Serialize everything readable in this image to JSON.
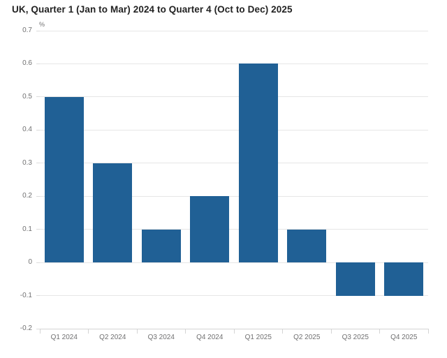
{
  "title": "UK, Quarter 1 (Jan to Mar) 2024 to Quarter 4 (Oct to Dec) 2025",
  "chart_data": {
    "type": "bar",
    "title": "UK, Quarter 1 (Jan to Mar) 2024 to Quarter 4 (Oct to Dec) 2025",
    "unit_label": "%",
    "categories": [
      "Q1 2024",
      "Q2 2024",
      "Q3 2024",
      "Q4 2024",
      "Q1 2025",
      "Q2 2025",
      "Q3 2025",
      "Q4 2025"
    ],
    "values": [
      0.5,
      0.3,
      0.1,
      0.2,
      0.6,
      0.1,
      -0.1,
      -0.1
    ],
    "xlabel": "",
    "ylabel": "%",
    "ylim": [
      -0.2,
      0.7
    ],
    "yticks": [
      0.7,
      0.6,
      0.5,
      0.4,
      0.3,
      0.2,
      0.1,
      0,
      -0.1,
      -0.2
    ],
    "grid": true,
    "legend": "none",
    "bar_color": "#206095",
    "gridline_color": "#e6e6e6",
    "axis_color": "#d4d4d4",
    "tick_text_color": "#707071",
    "title_color": "#222222"
  }
}
